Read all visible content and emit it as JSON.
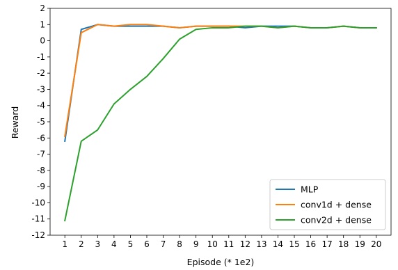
{
  "chart_data": {
    "type": "line",
    "title": "",
    "xlabel": "Episode  (* 1e2)",
    "ylabel": "Reward",
    "x": [
      1,
      2,
      3,
      4,
      5,
      6,
      7,
      8,
      9,
      10,
      11,
      12,
      13,
      14,
      15,
      16,
      17,
      18,
      19,
      20
    ],
    "xticks": [
      "1",
      "2",
      "3",
      "4",
      "5",
      "6",
      "7",
      "8",
      "9",
      "10",
      "11",
      "12",
      "13",
      "14",
      "15",
      "16",
      "17",
      "18",
      "19",
      "20"
    ],
    "xlim": [
      0.1,
      20.9
    ],
    "ylim": [
      -12,
      2
    ],
    "yticks": [
      2,
      1,
      0,
      -1,
      -2,
      -3,
      -4,
      -5,
      -6,
      -7,
      -8,
      -9,
      -10,
      -11,
      -12
    ],
    "grid": false,
    "legend_position": "bottom-right",
    "series": [
      {
        "name": "MLP",
        "color": "#1f77b4",
        "values": [
          -6.2,
          0.7,
          1.0,
          0.9,
          0.9,
          0.9,
          0.9,
          0.8,
          0.9,
          0.9,
          0.9,
          0.8,
          0.9,
          0.9,
          0.9,
          0.8,
          0.8,
          0.9,
          0.8,
          0.8
        ]
      },
      {
        "name": "conv1d + dense",
        "color": "#ff7f0e",
        "values": [
          -5.9,
          0.5,
          1.0,
          0.9,
          1.0,
          1.0,
          0.9,
          0.8,
          0.9,
          0.9,
          0.9,
          0.9,
          0.9,
          0.8,
          0.9,
          0.8,
          0.8,
          0.9,
          0.8,
          0.8
        ]
      },
      {
        "name": "conv2d + dense",
        "color": "#2ca02c",
        "values": [
          -11.1,
          -6.2,
          -5.5,
          -3.9,
          -3.0,
          -2.2,
          -1.1,
          0.1,
          0.7,
          0.8,
          0.8,
          0.9,
          0.9,
          0.8,
          0.9,
          0.8,
          0.8,
          0.9,
          0.8,
          0.8
        ]
      }
    ]
  }
}
